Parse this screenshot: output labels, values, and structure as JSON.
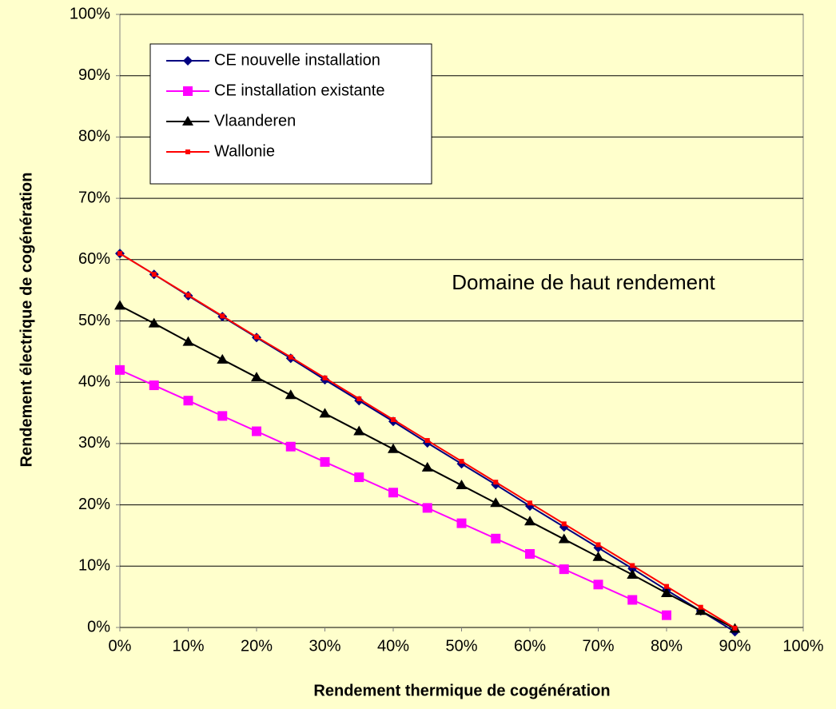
{
  "chart_data": {
    "type": "line",
    "xlabel": "Rendement thermique de cogénération",
    "ylabel": "Rendement électrique de cogénération",
    "annotation": "Domaine de haut rendement",
    "x": [
      0,
      5,
      10,
      15,
      20,
      25,
      30,
      35,
      40,
      45,
      50,
      55,
      60,
      65,
      70,
      75,
      80,
      85,
      90
    ],
    "series": [
      {
        "name": "CE nouvelle installation",
        "color": "#000080",
        "marker": "diamond",
        "values": [
          61,
          57.6,
          54.1,
          50.7,
          47.3,
          43.9,
          40.4,
          37.0,
          33.6,
          30.1,
          26.7,
          23.3,
          19.8,
          16.4,
          13.0,
          9.6,
          6.1,
          2.7,
          -0.7
        ]
      },
      {
        "name": "CE installation existante",
        "color": "#ff00ff",
        "marker": "square",
        "values": [
          42,
          39.5,
          37,
          34.5,
          32,
          29.5,
          27,
          24.5,
          22,
          19.5,
          17,
          14.5,
          12,
          9.5,
          7,
          4.5,
          2,
          null,
          null
        ]
      },
      {
        "name": "Vlaanderen",
        "color": "#000000",
        "marker": "triangle",
        "values": [
          52.5,
          49.6,
          46.6,
          43.7,
          40.8,
          37.9,
          34.9,
          32.0,
          29.1,
          26.1,
          23.2,
          20.3,
          17.3,
          14.4,
          11.5,
          8.6,
          5.6,
          2.7,
          -0.2
        ]
      },
      {
        "name": "Wallonie",
        "color": "#ff0000",
        "marker": "smallsquare",
        "values": [
          61,
          57.6,
          54.2,
          50.8,
          47.4,
          44.1,
          40.7,
          37.3,
          33.9,
          30.5,
          27.1,
          23.7,
          20.3,
          16.9,
          13.5,
          10.1,
          6.7,
          3.3,
          -0.1
        ]
      }
    ],
    "xlim": [
      0,
      100
    ],
    "ylim": [
      0,
      100
    ],
    "xticks": [
      {
        "value": 0,
        "label": "0%"
      },
      {
        "value": 10,
        "label": "10%"
      },
      {
        "value": 20,
        "label": "20%"
      },
      {
        "value": 30,
        "label": "30%"
      },
      {
        "value": 40,
        "label": "40%"
      },
      {
        "value": 50,
        "label": "50%"
      },
      {
        "value": 60,
        "label": "60%"
      },
      {
        "value": 70,
        "label": "70%"
      },
      {
        "value": 80,
        "label": "80%"
      },
      {
        "value": 90,
        "label": "90%"
      },
      {
        "value": 100,
        "label": "100%"
      }
    ],
    "yticks": [
      {
        "value": 0,
        "label": "0%"
      },
      {
        "value": 10,
        "label": "10%"
      },
      {
        "value": 20,
        "label": "20%"
      },
      {
        "value": 30,
        "label": "30%"
      },
      {
        "value": 40,
        "label": "40%"
      },
      {
        "value": 50,
        "label": "50%"
      },
      {
        "value": 60,
        "label": "60%"
      },
      {
        "value": 70,
        "label": "70%"
      },
      {
        "value": 80,
        "label": "80%"
      },
      {
        "value": 90,
        "label": "90%"
      },
      {
        "value": 100,
        "label": "100%"
      }
    ],
    "grid": true,
    "legend": "upper left"
  }
}
